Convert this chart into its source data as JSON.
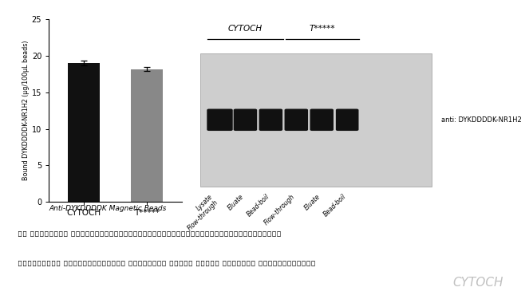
{
  "bar_categories": [
    "CYTOCH",
    "T*****"
  ],
  "bar_values": [
    19.0,
    18.2
  ],
  "bar_errors": [
    0.35,
    0.25
  ],
  "bar_colors": [
    "#111111",
    "#888888"
  ],
  "ylabel": "Bound DYKDDDDK-NR1H2 (μg/100μL beads)",
  "ylim": [
    0,
    25
  ],
  "yticks": [
    0,
    5,
    10,
    15,
    20,
    25
  ],
  "xlabel_caption": "Anti-DYKDDDDK Magnetic Beads",
  "wb_group1_label": "CYTOCH",
  "wb_group2_label": "T*****",
  "wb_antibody_label": "anti: DYKDDDDK-NR1H2",
  "wb_lane_labels": [
    "Lysate\nFlow-through",
    "Eluate",
    "Bead-boil",
    "Flow-through",
    "Eluate",
    "Bead-boil"
  ],
  "wb_bg_color": "#cecece",
  "wb_band_color": "#111111",
  "footer_line1": "图. 免疫沉淠293T 细胞过表达的DYKDDDDK-NR1H2融合蛋白，BCA检测洗脱获得的蛋白浓度；WB检测",
  "footer_line2": "也证实CYTOCH Anti-DYKDDDDK Magnetic Beads (Cat# PM0011) 具有很好的抗原捕获能力。",
  "cytoch_watermark": "CYTOCH",
  "bg_color": "#ffffff",
  "footer_bg_color": "#e8e8e8"
}
